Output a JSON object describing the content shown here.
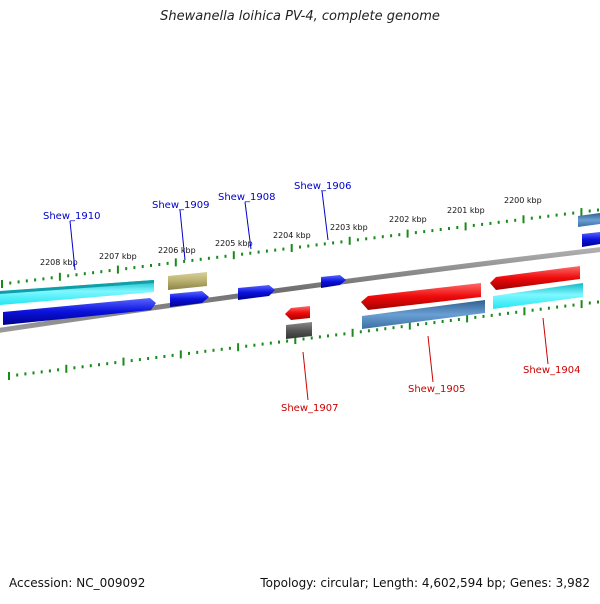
{
  "title": "Shewanella loihica PV-4, complete genome",
  "footer": {
    "accession": "Accession: NC_009092",
    "summary": "Topology: circular; Length: 4,602,594 bp; Genes: 3,982"
  },
  "scale_labels": [
    "2208 kbp",
    "2207 kbp",
    "2206 kbp",
    "2205 kbp",
    "2204 kbp",
    "2203 kbp",
    "2202 kbp",
    "2201 kbp",
    "2200 kbp"
  ],
  "gene_labels": {
    "forward": [
      "Shew_1910",
      "Shew_1909",
      "Shew_1908",
      "Shew_1906"
    ],
    "reverse": [
      "Shew_1907",
      "Shew_1905",
      "Shew_1904"
    ]
  },
  "colors": {
    "forward_label": "#0000cc",
    "reverse_label": "#cc0000",
    "tick": "#1a8a1a",
    "backbone": "#808080",
    "cds_blue": "#0a12dd",
    "cyan": "#22e6f2",
    "red": "#ee0a0a",
    "khaki": "#b9b06f",
    "steelblue": "#4a7fb3",
    "darkgray": "#555555"
  }
}
